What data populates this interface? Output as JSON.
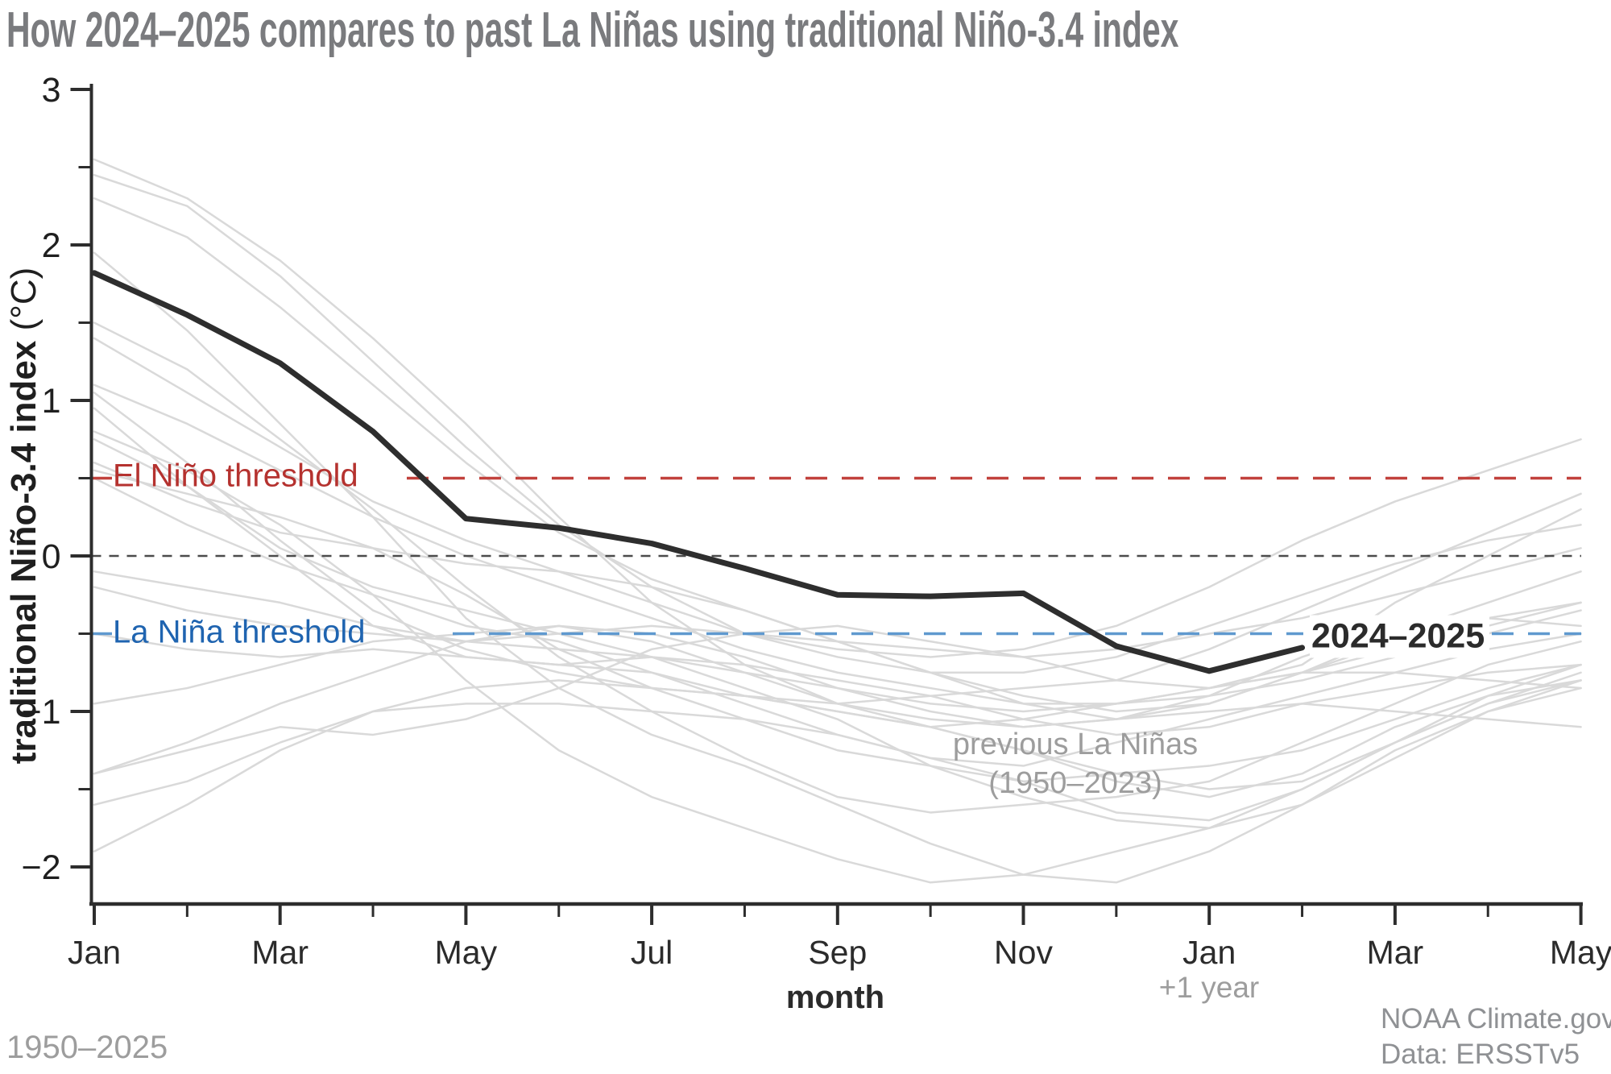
{
  "title": "How 2024–2025 compares to past La Niñas using traditional Niño-3.4 index",
  "y_axis": {
    "label_bold": "traditional Niño-3.4 index",
    "label_unit": " (°C)",
    "major_ticks": [
      3,
      2,
      1,
      0,
      -1,
      -2
    ],
    "major_tick_labels": [
      "3",
      "2",
      "1",
      "0",
      "−1",
      "−2"
    ],
    "minor_ticks": [
      2.5,
      1.5,
      0.5,
      -0.5,
      -1.5
    ]
  },
  "x_axis": {
    "label": "month",
    "tick_labels": [
      "Jan",
      "Mar",
      "May",
      "Jul",
      "Sep",
      "Nov",
      "Jan",
      "Mar",
      "May"
    ],
    "plus_one_year": "+1 year"
  },
  "annotations": {
    "el_nino_threshold": "El Niño threshold",
    "la_nina_threshold": "La Niña threshold",
    "current_series": "2024–2025",
    "previous_line1": "previous La Niñas",
    "previous_line2": "(1950–2023)",
    "range": "1950–2025",
    "credit_line1": "NOAA Climate.gov",
    "credit_line2": "Data: ERSSTv5"
  },
  "colors": {
    "background": "#ffffff",
    "title_text": "#7a7b7e",
    "axis": "#2d2d2d",
    "tick_label": "#1f1f1f",
    "highlight_line": "#2e2e2e",
    "previous_lines": "#d9d9d9",
    "zero_line": "#4b4b4b",
    "el_nino_text": "#b5322f",
    "el_nino_dash": "#c2423d",
    "la_nina_text": "#1f64b0",
    "la_nina_dash": "#5f99cf",
    "gray_annotation": "#9d9d9d",
    "credit_text": "#8f9194"
  },
  "chart_data": {
    "type": "line",
    "title": "How 2024–2025 compares to past La Niñas using traditional Niño-3.4 index",
    "xlabel": "month",
    "ylabel": "traditional Niño-3.4 index (°C)",
    "ylim": [
      -2.25,
      3
    ],
    "grid": false,
    "legend_position": "annotated-inline",
    "x_months": [
      "Jan",
      "Feb",
      "Mar",
      "Apr",
      "May",
      "Jun",
      "Jul",
      "Aug",
      "Sep",
      "Oct",
      "Nov",
      "Dec",
      "Jan",
      "Feb",
      "Mar",
      "Apr",
      "May"
    ],
    "labeled_tick_indices": [
      0,
      2,
      4,
      6,
      8,
      10,
      12,
      14,
      16
    ],
    "thresholds": {
      "el_nino": 0.5,
      "zero": 0,
      "la_nina": -0.5
    },
    "highlight_series": {
      "name": "2024–2025",
      "values": [
        1.82,
        1.55,
        1.24,
        0.8,
        0.24,
        0.18,
        0.08,
        -0.08,
        -0.25,
        -0.26,
        -0.24,
        -0.58,
        -0.74,
        -0.59
      ]
    },
    "background_series_name": "previous La Niñas (1950–2023)",
    "background_series": [
      {
        "values": [
          2.55,
          2.3,
          1.9,
          1.4,
          0.85,
          0.25,
          -0.3,
          -0.7,
          -0.95,
          -1.1,
          -1.25,
          -1.4,
          -1.5,
          -1.45,
          -1.2,
          -0.95,
          -0.8
        ]
      },
      {
        "values": [
          2.45,
          2.25,
          1.8,
          1.25,
          0.7,
          0.2,
          -0.2,
          -0.5,
          -0.65,
          -0.75,
          -0.75,
          -0.65,
          -0.45,
          -0.25,
          -0.05,
          0.1,
          0.2
        ]
      },
      {
        "values": [
          2.3,
          2.05,
          1.6,
          1.1,
          0.6,
          0.15,
          -0.15,
          -0.35,
          -0.55,
          -0.75,
          -0.95,
          -1.05,
          -0.9,
          -0.65,
          -0.45,
          -0.4,
          -0.45
        ]
      },
      {
        "values": [
          1.95,
          1.45,
          0.85,
          0.25,
          -0.4,
          -0.85,
          -1.15,
          -1.35,
          -1.6,
          -1.85,
          -2.05,
          -2.1,
          -1.9,
          -1.6,
          -1.25,
          -1.0,
          -0.85
        ]
      },
      {
        "values": [
          1.5,
          1.2,
          0.75,
          0.3,
          -0.2,
          -0.65,
          -1.0,
          -1.3,
          -1.55,
          -1.65,
          -1.6,
          -1.55,
          -1.45,
          -1.2,
          -0.95,
          -0.7,
          -0.55
        ]
      },
      {
        "values": [
          0.8,
          0.55,
          0.2,
          -0.25,
          -0.8,
          -1.25,
          -1.55,
          -1.75,
          -1.95,
          -2.1,
          -2.05,
          -1.9,
          -1.75,
          -1.5,
          -1.2,
          -0.95,
          -0.75
        ]
      },
      {
        "values": [
          0.95,
          0.45,
          0.05,
          -0.2,
          -0.35,
          -0.5,
          -0.65,
          -0.85,
          -1.05,
          -1.35,
          -1.55,
          -1.7,
          -1.75,
          -1.6,
          -1.3,
          -1.0,
          -0.8
        ]
      },
      {
        "values": [
          0.55,
          0.4,
          0.25,
          0.05,
          -0.25,
          -0.6,
          -0.85,
          -1.05,
          -1.25,
          -1.35,
          -1.45,
          -1.4,
          -1.35,
          -1.25,
          -1.05,
          -0.85,
          -0.7
        ]
      },
      {
        "values": [
          1.1,
          0.85,
          0.55,
          0.25,
          0.0,
          -0.2,
          -0.4,
          -0.6,
          -0.75,
          -0.85,
          -0.95,
          -0.95,
          -0.85,
          -0.75,
          -0.6,
          -0.45,
          -0.3
        ]
      },
      {
        "values": [
          0.5,
          0.2,
          -0.05,
          -0.25,
          -0.45,
          -0.55,
          -0.75,
          -0.95,
          -1.15,
          -1.3,
          -1.35,
          -1.2,
          -1.05,
          -0.9,
          -0.75,
          -0.6,
          -0.5
        ]
      },
      {
        "values": [
          -0.95,
          -0.85,
          -0.7,
          -0.55,
          -0.5,
          -0.45,
          -0.55,
          -0.75,
          -0.95,
          -1.05,
          -1.1,
          -1.05,
          -1.0,
          -0.95,
          -1.0,
          -1.05,
          -1.1
        ]
      },
      {
        "values": [
          -1.6,
          -1.45,
          -1.2,
          -1.0,
          -0.95,
          -0.95,
          -1.0,
          -1.05,
          -1.15,
          -1.3,
          -1.45,
          -1.65,
          -1.7,
          -1.5,
          -1.2,
          -0.9,
          -0.7
        ]
      },
      {
        "values": [
          -1.9,
          -1.6,
          -1.25,
          -1.0,
          -0.85,
          -0.8,
          -0.85,
          -0.9,
          -1.0,
          -1.1,
          -1.25,
          -1.45,
          -1.55,
          -1.4,
          -1.1,
          -0.9,
          -0.8
        ]
      },
      {
        "values": [
          0.75,
          0.45,
          0.0,
          -0.45,
          -0.65,
          -0.7,
          -0.75,
          -0.9,
          -1.0,
          -1.1,
          -1.05,
          -0.95,
          -0.85,
          -0.75,
          -0.75,
          -0.8,
          -0.85
        ]
      },
      {
        "values": [
          1.05,
          0.6,
          0.1,
          -0.35,
          -0.6,
          -0.75,
          -0.85,
          -0.9,
          -0.95,
          -0.9,
          -0.85,
          -0.8,
          -0.6,
          -0.35,
          -0.1,
          0.15,
          0.4
        ]
      },
      {
        "values": [
          1.4,
          1.05,
          0.7,
          0.35,
          0.1,
          -0.1,
          -0.3,
          -0.5,
          -0.6,
          -0.65,
          -0.6,
          -0.45,
          -0.2,
          0.1,
          0.35,
          0.55,
          0.75
        ]
      },
      {
        "values": [
          0.6,
          0.35,
          0.15,
          0.05,
          -0.05,
          -0.1,
          -0.2,
          -0.35,
          -0.55,
          -0.75,
          -0.9,
          -1.0,
          -0.95,
          -0.75,
          -0.5,
          -0.3,
          -0.1
        ]
      },
      {
        "values": [
          -0.1,
          -0.2,
          -0.3,
          -0.45,
          -0.55,
          -0.6,
          -0.65,
          -0.75,
          -0.85,
          -0.95,
          -1.0,
          -0.95,
          -0.9,
          -0.8,
          -0.65,
          -0.5,
          -0.35
        ]
      },
      {
        "values": [
          -1.4,
          -1.2,
          -0.95,
          -0.75,
          -0.55,
          -0.45,
          -0.5,
          -0.65,
          -0.85,
          -1.0,
          -1.1,
          -1.05,
          -0.95,
          -0.75,
          -0.55,
          -0.4,
          -0.3
        ]
      },
      {
        "values": [
          -0.2,
          -0.35,
          -0.45,
          -0.5,
          -0.55,
          -0.5,
          -0.45,
          -0.5,
          -0.55,
          -0.6,
          -0.65,
          -0.6,
          -0.5,
          -0.4,
          -0.25,
          -0.1,
          0.05
        ]
      },
      {
        "values": [
          -0.5,
          -0.6,
          -0.65,
          -0.6,
          -0.65,
          -0.7,
          -0.65,
          -0.7,
          -0.8,
          -0.9,
          -1.05,
          -1.15,
          -1.1,
          -0.95,
          -0.85,
          -0.75,
          -0.7
        ]
      },
      {
        "values": [
          -1.4,
          -1.25,
          -1.1,
          -1.15,
          -1.05,
          -0.85,
          -0.6,
          -0.5,
          -0.45,
          -0.55,
          -0.65,
          -0.8,
          -0.85,
          -0.7,
          -0.3,
          0.0,
          0.3
        ]
      }
    ]
  }
}
